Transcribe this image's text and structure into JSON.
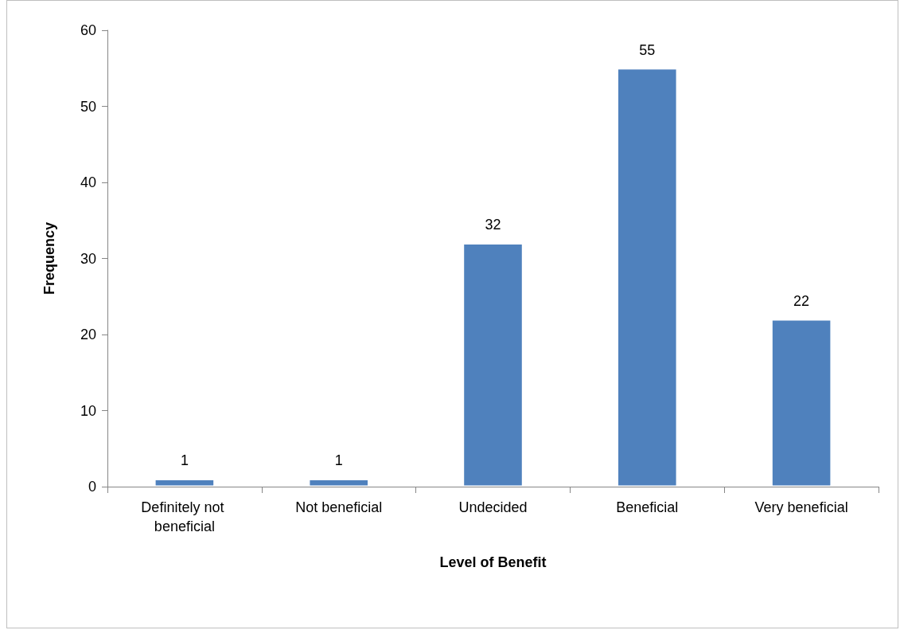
{
  "chart_data": {
    "type": "bar",
    "xlabel": "Level of Benefit",
    "ylabel": "Frequency",
    "categories": [
      "Definitely not beneficial",
      "Not beneficial",
      "Undecided",
      "Beneficial",
      "Very beneficial"
    ],
    "values": [
      1,
      1,
      32,
      55,
      22
    ],
    "color": "#4f81bd",
    "ylim": [
      0,
      60
    ],
    "yticks": [
      0,
      10,
      20,
      30,
      40,
      50,
      60
    ],
    "grid": false,
    "data_labels": true
  }
}
